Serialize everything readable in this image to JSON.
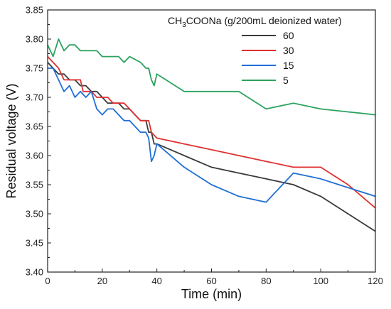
{
  "chart_data": {
    "type": "line",
    "xlabel": "Time (min)",
    "ylabel": "Residual voltage (V)",
    "xlim": [
      0,
      120
    ],
    "ylim": [
      3.4,
      3.85
    ],
    "xticks": [
      0,
      20,
      40,
      60,
      80,
      100,
      120
    ],
    "yticks": [
      3.4,
      3.45,
      3.5,
      3.55,
      3.6,
      3.65,
      3.7,
      3.75,
      3.8,
      3.85
    ],
    "grid": false,
    "legend_placement": "top-right",
    "legend_title": {
      "prefix": "CH",
      "sub1": "3",
      "mid": "COONa",
      "suffix": " (g/200mL deionized water)"
    },
    "series": [
      {
        "name": "60",
        "color": "#3a3a3a",
        "x": [
          0,
          2,
          4,
          6,
          8,
          10,
          12,
          14,
          16,
          18,
          20,
          22,
          24,
          26,
          28,
          30,
          32,
          34,
          36,
          37,
          38,
          39,
          40,
          50,
          60,
          70,
          80,
          90,
          100,
          110,
          120
        ],
        "y": [
          3.76,
          3.75,
          3.74,
          3.74,
          3.73,
          3.73,
          3.72,
          3.72,
          3.71,
          3.71,
          3.7,
          3.69,
          3.69,
          3.69,
          3.68,
          3.68,
          3.67,
          3.66,
          3.66,
          3.64,
          3.64,
          3.62,
          3.62,
          3.6,
          3.58,
          3.57,
          3.56,
          3.55,
          3.53,
          3.5,
          3.47
        ]
      },
      {
        "name": "30",
        "color": "#e03030",
        "x": [
          0,
          2,
          4,
          6,
          8,
          10,
          12,
          13,
          14,
          16,
          18,
          20,
          22,
          24,
          26,
          28,
          30,
          32,
          34,
          36,
          37,
          38,
          40,
          50,
          60,
          70,
          80,
          90,
          100,
          110,
          120
        ],
        "y": [
          3.77,
          3.76,
          3.75,
          3.73,
          3.73,
          3.73,
          3.73,
          3.71,
          3.71,
          3.71,
          3.7,
          3.7,
          3.7,
          3.69,
          3.69,
          3.69,
          3.68,
          3.67,
          3.66,
          3.66,
          3.66,
          3.64,
          3.63,
          3.62,
          3.61,
          3.6,
          3.59,
          3.58,
          3.58,
          3.55,
          3.51
        ]
      },
      {
        "name": "15",
        "color": "#1f6fd6",
        "x": [
          0,
          2,
          4,
          6,
          8,
          10,
          12,
          14,
          16,
          18,
          20,
          22,
          24,
          26,
          28,
          30,
          32,
          34,
          36,
          37,
          38,
          39,
          40,
          50,
          60,
          70,
          80,
          90,
          100,
          110,
          120
        ],
        "y": [
          3.75,
          3.75,
          3.73,
          3.71,
          3.72,
          3.7,
          3.71,
          3.7,
          3.71,
          3.68,
          3.67,
          3.68,
          3.68,
          3.67,
          3.66,
          3.66,
          3.65,
          3.64,
          3.64,
          3.63,
          3.59,
          3.6,
          3.62,
          3.58,
          3.55,
          3.53,
          3.52,
          3.57,
          3.56,
          3.545,
          3.53
        ]
      },
      {
        "name": "5",
        "color": "#2ca25f",
        "x": [
          0,
          2,
          4,
          6,
          8,
          10,
          12,
          14,
          16,
          18,
          20,
          22,
          24,
          26,
          28,
          30,
          32,
          34,
          36,
          37,
          38,
          39,
          40,
          50,
          60,
          70,
          80,
          90,
          100,
          110,
          120
        ],
        "y": [
          3.79,
          3.77,
          3.8,
          3.78,
          3.79,
          3.79,
          3.78,
          3.78,
          3.78,
          3.78,
          3.77,
          3.77,
          3.77,
          3.77,
          3.76,
          3.77,
          3.765,
          3.76,
          3.75,
          3.75,
          3.73,
          3.72,
          3.74,
          3.71,
          3.71,
          3.71,
          3.68,
          3.69,
          3.68,
          3.675,
          3.67
        ]
      }
    ]
  }
}
